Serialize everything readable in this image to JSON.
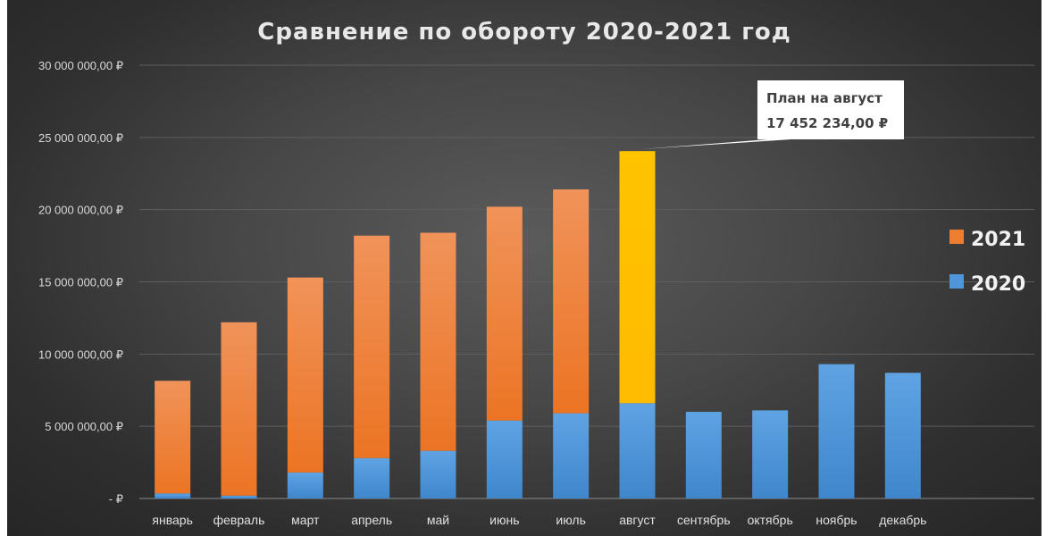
{
  "chart_data": {
    "type": "bar",
    "stacked": true,
    "title": "Сравнение по обороту 2020-2021 год",
    "categories": [
      "январь",
      "февраль",
      "март",
      "апрель",
      "май",
      "июнь",
      "июль",
      "август",
      "сентябрь",
      "октябрь",
      "ноябрь",
      "декабрь"
    ],
    "series": [
      {
        "name": "2020",
        "color": "#4e95d9",
        "values": [
          350000,
          200000,
          1800000,
          2800000,
          3300000,
          5400000,
          5900000,
          6600000,
          6000000,
          6100000,
          9300000,
          8700000
        ]
      },
      {
        "name": "2021",
        "color": "#ed7d31",
        "values": [
          7800000,
          12000000,
          13500000,
          15400000,
          15100000,
          14800000,
          15500000,
          17452234,
          null,
          null,
          null,
          null
        ]
      }
    ],
    "highlight": {
      "category": "август",
      "series": "2021",
      "color": "#ffc000"
    },
    "yticks": [
      {
        "value": 0,
        "label": "-   ₽"
      },
      {
        "value": 5000000,
        "label": "5 000 000,00 ₽"
      },
      {
        "value": 10000000,
        "label": "10 000 000,00 ₽"
      },
      {
        "value": 15000000,
        "label": "15 000 000,00 ₽"
      },
      {
        "value": 20000000,
        "label": "20 000 000,00 ₽"
      },
      {
        "value": 25000000,
        "label": "25 000 000,00 ₽"
      },
      {
        "value": 30000000,
        "label": "30 000 000,00 ₽"
      }
    ],
    "ylim": [
      0,
      30000000
    ],
    "grid": true,
    "legend": {
      "placement": "right",
      "entries": [
        "2021",
        "2020"
      ]
    },
    "annotation": {
      "category": "август",
      "line1": "План на август",
      "line2": "17 452 234,00 ₽"
    }
  }
}
